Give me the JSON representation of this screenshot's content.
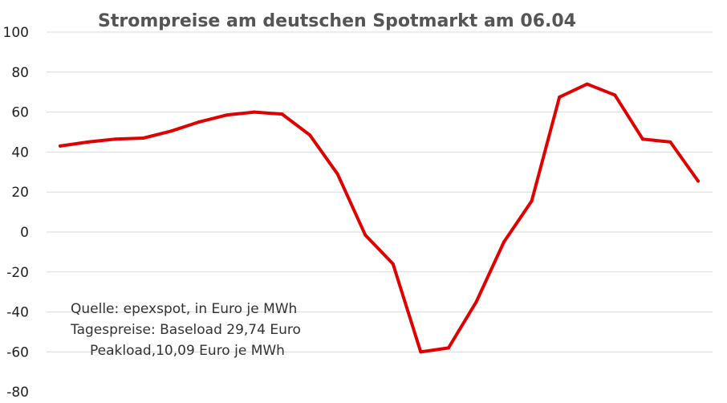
{
  "chart_data": {
    "type": "line",
    "title": "Strompreise am deutschen Spotmarkt am 06.04",
    "annotation_lines": [
      "Quelle: epexspot, in Euro je MWh",
      "Tagespreise: Baseload 29,74 Euro",
      "Peakload,10,09 Euro je MWh"
    ],
    "xlabel": "",
    "ylabel": "",
    "ylim": [
      -80,
      100
    ],
    "yticks": [
      100,
      80,
      60,
      40,
      20,
      0,
      -20,
      -40,
      -60,
      -80
    ],
    "grid": true,
    "legend": "none",
    "series_color": "#e00000",
    "x": [
      1,
      2,
      3,
      4,
      5,
      6,
      7,
      8,
      9,
      10,
      11,
      12,
      13,
      14,
      15,
      16,
      17,
      18,
      19,
      20,
      21,
      22,
      23,
      24
    ],
    "series": [
      {
        "values": [
          43,
          45,
          46.5,
          47,
          50.5,
          55,
          58.5,
          60,
          59,
          48.5,
          29,
          -1.5,
          -16,
          -60,
          -58,
          -35,
          -5,
          15.5,
          67.5,
          74,
          68.5,
          46.5,
          45,
          25.5
        ]
      }
    ]
  }
}
